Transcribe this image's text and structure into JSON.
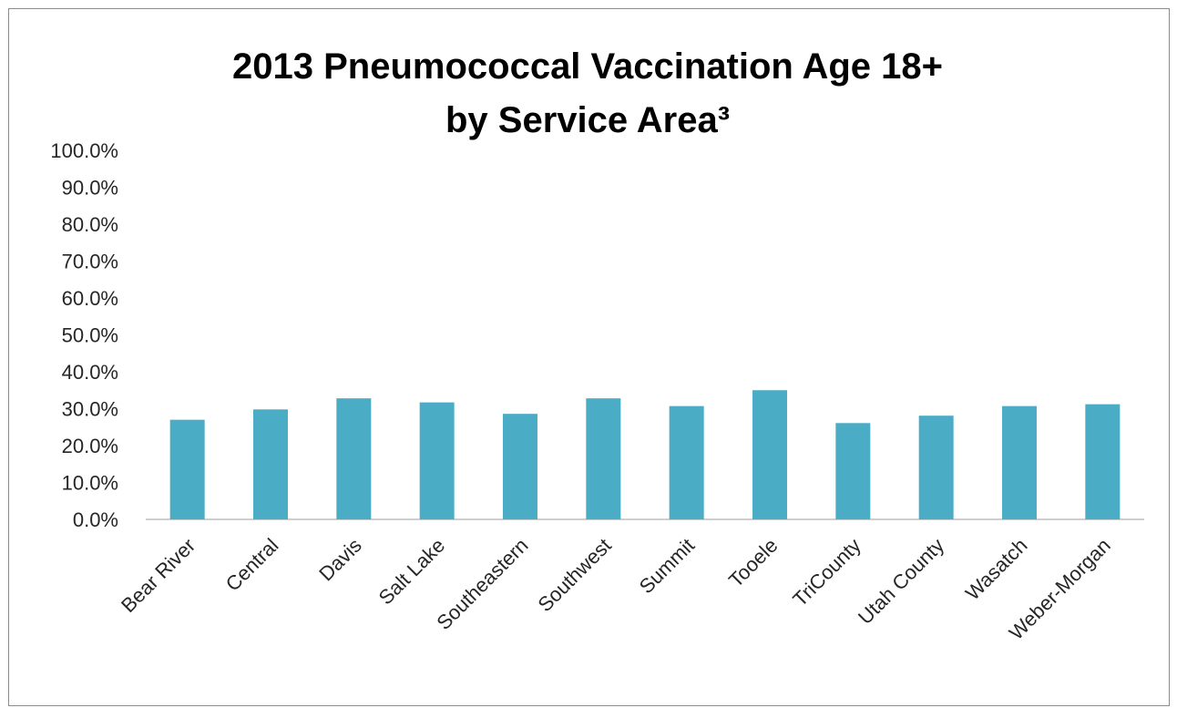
{
  "chart_data": {
    "type": "bar",
    "title": "2013 Pneumococcal Vaccination Age 18+",
    "subtitle": "by Service Area³",
    "xlabel": "",
    "ylabel": "",
    "categories": [
      "Bear River",
      "Central",
      "Davis",
      "Salt Lake",
      "Southeastern",
      "Southwest",
      "Summit",
      "Tooele",
      "TriCounty",
      "Utah County",
      "Wasatch",
      "Weber-Morgan"
    ],
    "values": [
      27.0,
      29.8,
      32.8,
      31.7,
      28.6,
      32.8,
      30.7,
      35.0,
      26.1,
      28.1,
      30.7,
      31.2
    ],
    "ylim": [
      0,
      100
    ],
    "yticks": [
      "0.0%",
      "10.0%",
      "20.0%",
      "30.0%",
      "40.0%",
      "50.0%",
      "60.0%",
      "70.0%",
      "80.0%",
      "90.0%",
      "100.0%"
    ],
    "grid": false,
    "legend": "none",
    "bar_color": "#4bacc6"
  }
}
